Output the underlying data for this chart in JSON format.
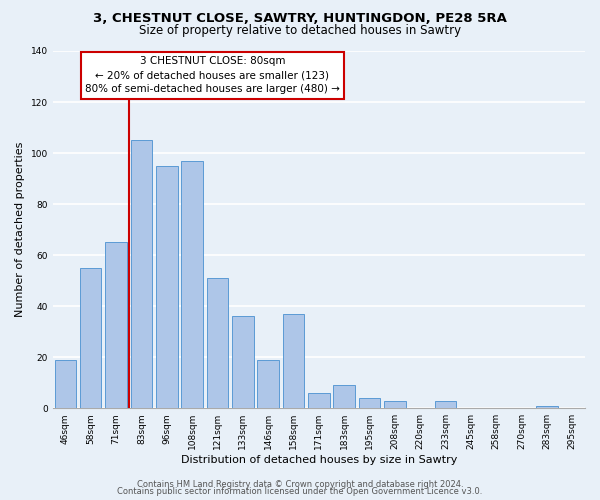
{
  "title": "3, CHESTNUT CLOSE, SAWTRY, HUNTINGDON, PE28 5RA",
  "subtitle": "Size of property relative to detached houses in Sawtry",
  "xlabel": "Distribution of detached houses by size in Sawtry",
  "ylabel": "Number of detached properties",
  "categories": [
    "46sqm",
    "58sqm",
    "71sqm",
    "83sqm",
    "96sqm",
    "108sqm",
    "121sqm",
    "133sqm",
    "146sqm",
    "158sqm",
    "171sqm",
    "183sqm",
    "195sqm",
    "208sqm",
    "220sqm",
    "233sqm",
    "245sqm",
    "258sqm",
    "270sqm",
    "283sqm",
    "295sqm"
  ],
  "values": [
    19,
    55,
    65,
    105,
    95,
    97,
    51,
    36,
    19,
    37,
    6,
    9,
    4,
    3,
    0,
    3,
    0,
    0,
    0,
    1,
    0
  ],
  "bar_color": "#aec6e8",
  "bar_edge_color": "#5b9bd5",
  "vline_x_index": 3,
  "vline_color": "#cc0000",
  "annotation_box_text": "3 CHESTNUT CLOSE: 80sqm\n← 20% of detached houses are smaller (123)\n80% of semi-detached houses are larger (480) →",
  "annotation_box_color": "#cc0000",
  "ylim": [
    0,
    140
  ],
  "yticks": [
    0,
    20,
    40,
    60,
    80,
    100,
    120,
    140
  ],
  "background_color": "#e8f0f8",
  "grid_color": "#ffffff",
  "footer_line1": "Contains HM Land Registry data © Crown copyright and database right 2024.",
  "footer_line2": "Contains public sector information licensed under the Open Government Licence v3.0.",
  "title_fontsize": 9.5,
  "subtitle_fontsize": 8.5,
  "axis_label_fontsize": 8,
  "tick_fontsize": 6.5,
  "footer_fontsize": 6,
  "annotation_fontsize": 7.5
}
